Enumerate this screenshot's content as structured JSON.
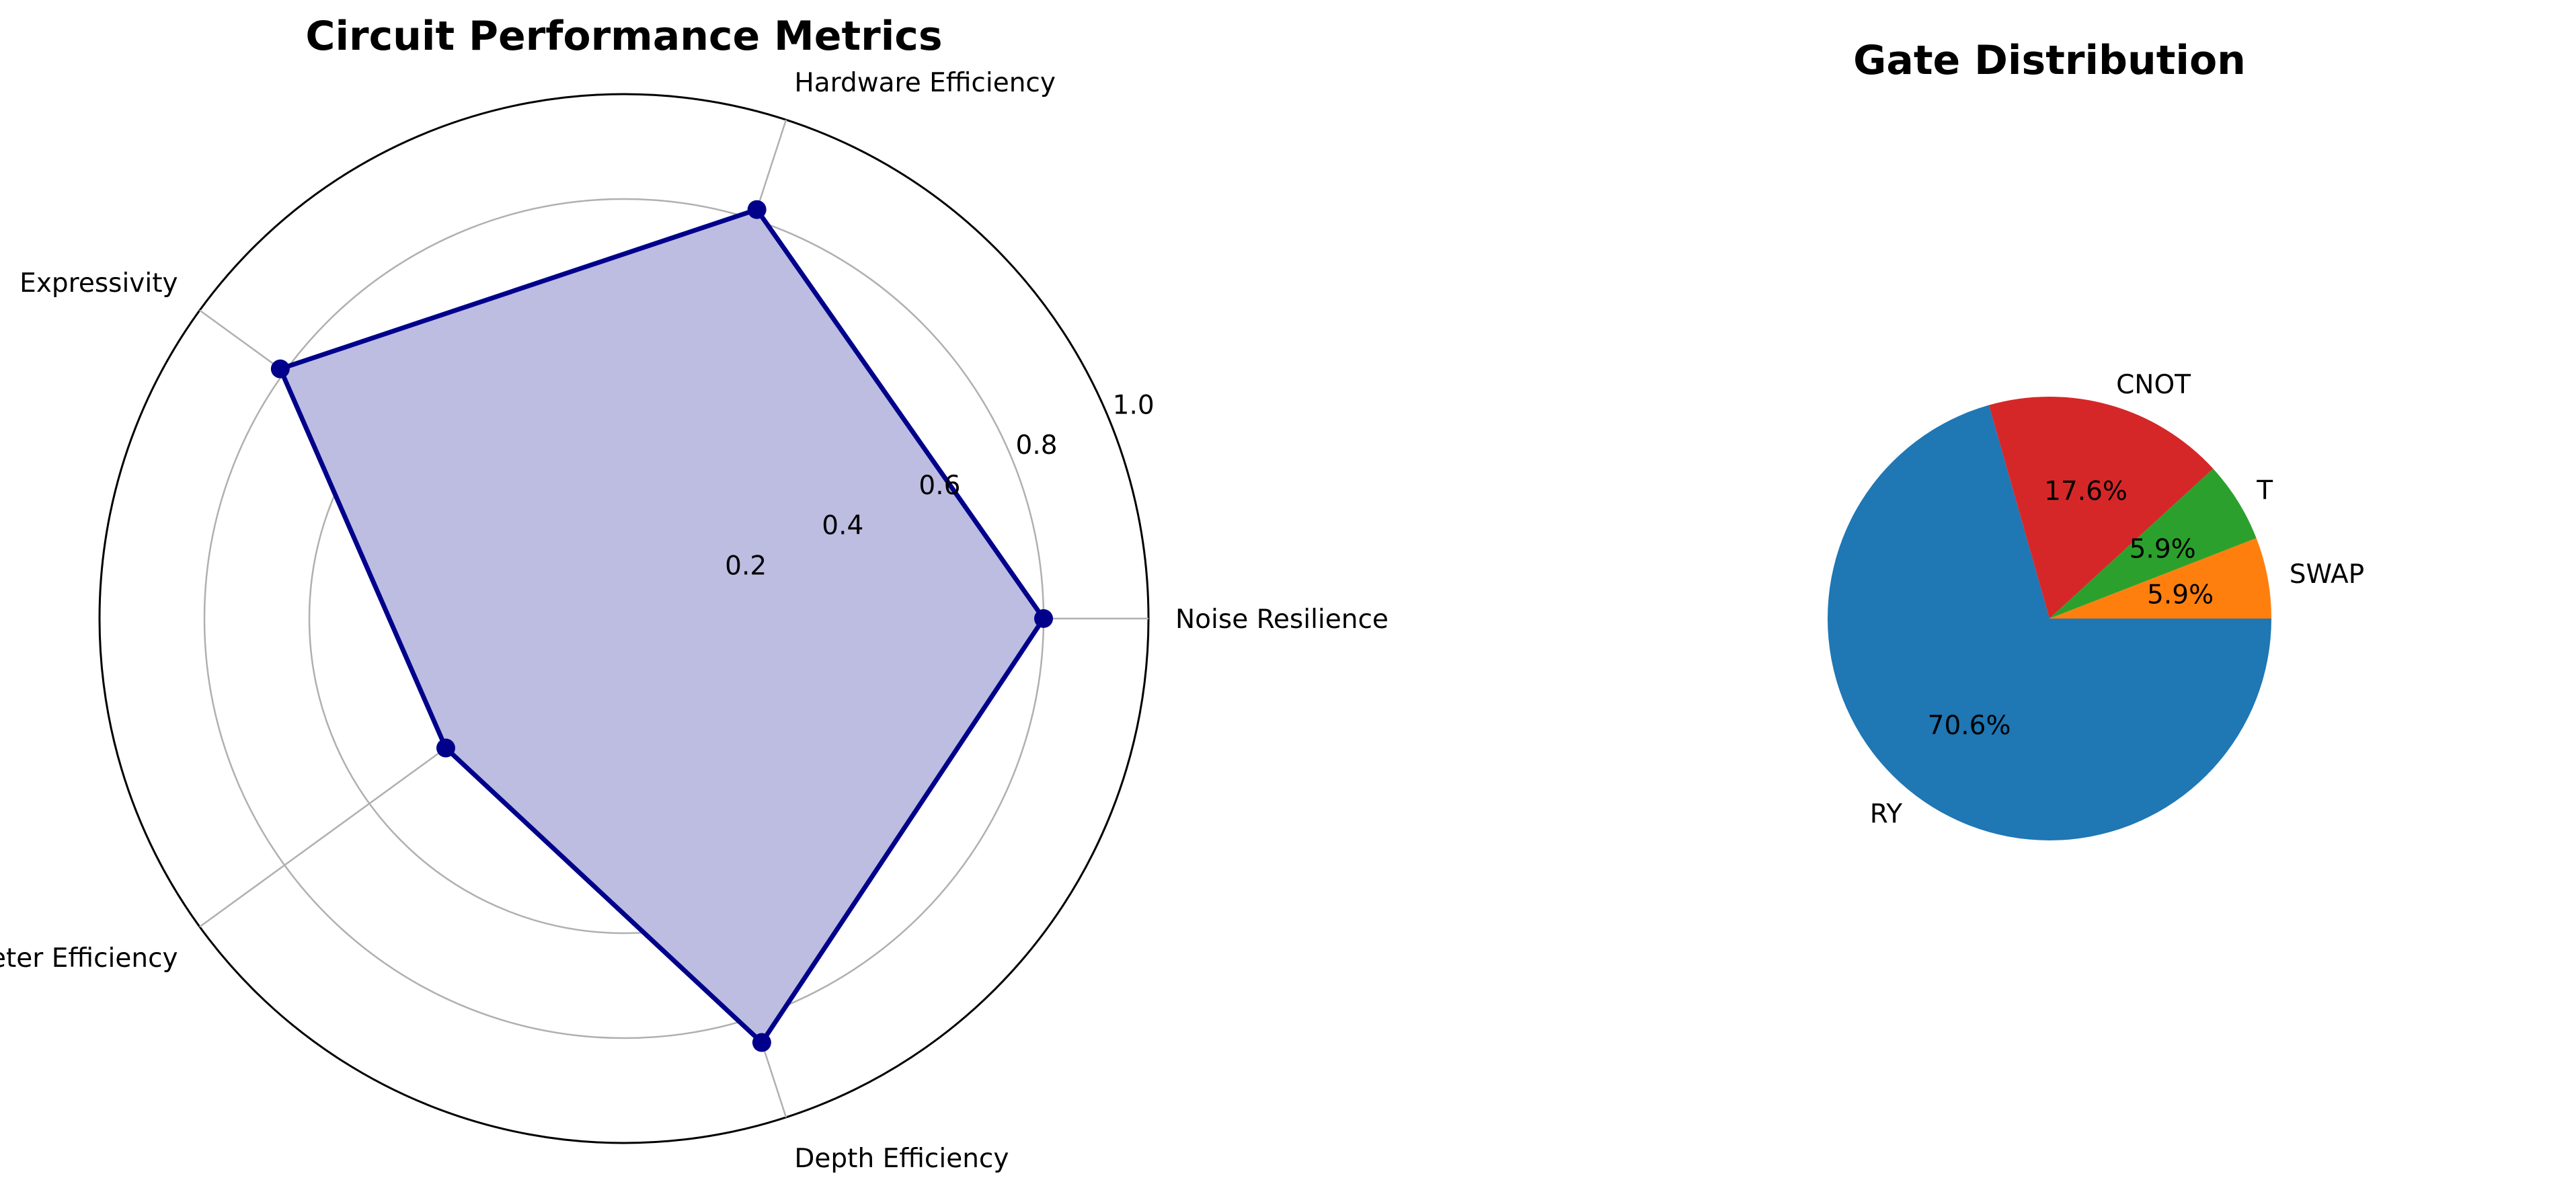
{
  "chart_data": [
    {
      "type": "radar",
      "title": "Circuit Performance Metrics",
      "categories": [
        "Noise Resilience",
        "Hardware Efficiency",
        "Expressivity",
        "Parameter Efficiency",
        "Depth Efficiency"
      ],
      "values": [
        0.8,
        0.82,
        0.81,
        0.42,
        0.85
      ],
      "rlim": [
        0,
        1.0
      ],
      "rticks": [
        0.2,
        0.4,
        0.6,
        0.8,
        1.0
      ],
      "rtick_labels": [
        "0.2",
        "0.4",
        "0.6",
        "0.8",
        "1.0"
      ],
      "grid": true,
      "colors": {
        "line": "#00008b",
        "fill": "#bcbde0",
        "grid": "#b0b0b0"
      }
    },
    {
      "type": "pie",
      "title": "Gate Distribution",
      "categories": [
        "RY",
        "CNOT",
        "T",
        "SWAP"
      ],
      "values": [
        70.6,
        17.6,
        5.9,
        5.9
      ],
      "value_labels": [
        "70.6%",
        "17.6%",
        "5.9%",
        "5.9%"
      ],
      "colors": [
        "#1f77b4",
        "#d62728",
        "#2ca02c",
        "#ff7f0e"
      ]
    }
  ]
}
